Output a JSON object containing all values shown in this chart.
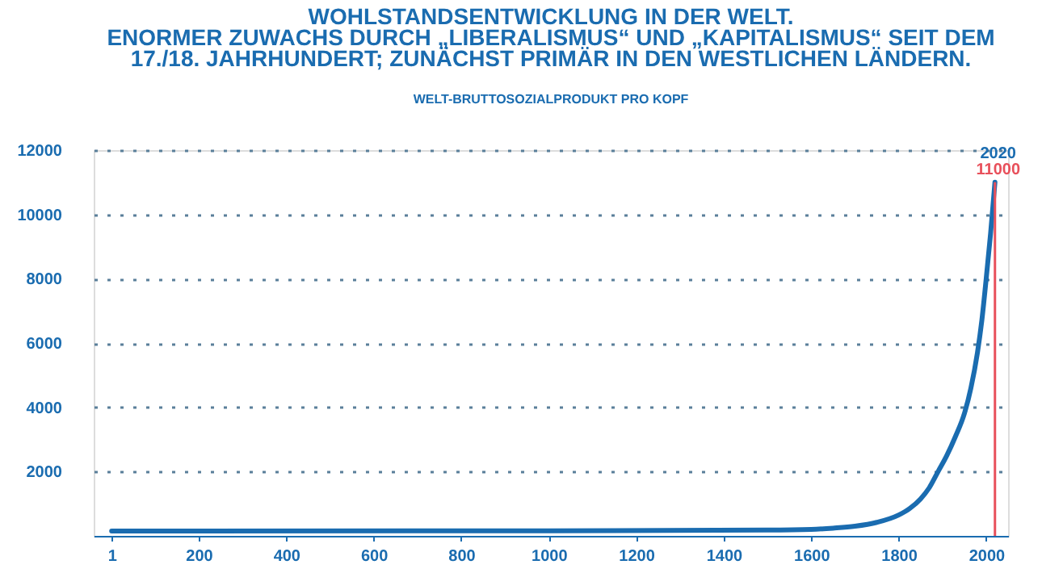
{
  "chart_data": {
    "type": "line",
    "title": [
      "WOHLSTANDSENTWICKLUNG IN DER WELT.",
      "ENORMER ZUWACHS DURCH „LIBERALISMUS“ UND „KAPITALISMUS“ SEIT DEM",
      "17./18. JAHRHUNDERT; ZUNÄCHST PRIMÄR IN DEN WESTLICHEN LÄNDERN."
    ],
    "subtitle": "WELT-BRUTTOSOZIALPRODUKT PRO KOPF",
    "series": [
      {
        "color": "#1a6cb0",
        "x": [
          1,
          1000,
          1500,
          1600,
          1650,
          1700,
          1750,
          1800,
          1825,
          1850,
          1870,
          1890,
          1910,
          1930,
          1950,
          1965,
          1980,
          1990,
          2000,
          2010,
          2020
        ],
        "values": [
          150,
          160,
          180,
          200,
          240,
          300,
          420,
          650,
          850,
          1150,
          1500,
          2000,
          2500,
          3100,
          3800,
          4600,
          5700,
          6700,
          8000,
          9400,
          11000
        ]
      }
    ],
    "xlim": [
      -40,
      2050
    ],
    "xticks": [
      1,
      200,
      400,
      600,
      800,
      1000,
      1200,
      1400,
      1600,
      1800,
      2000
    ],
    "ylim": [
      0,
      12000
    ],
    "yticks": [
      2000,
      4000,
      6000,
      8000,
      10000,
      12000
    ],
    "grid": "y",
    "ref_lines": [
      {
        "axis": "x",
        "value": 2020,
        "color": "#e8505b"
      }
    ],
    "annotations": [
      {
        "text": "2020",
        "x": 2020,
        "y": 11000
      },
      {
        "text": "11000",
        "x": 2020,
        "y": 11000
      }
    ]
  }
}
